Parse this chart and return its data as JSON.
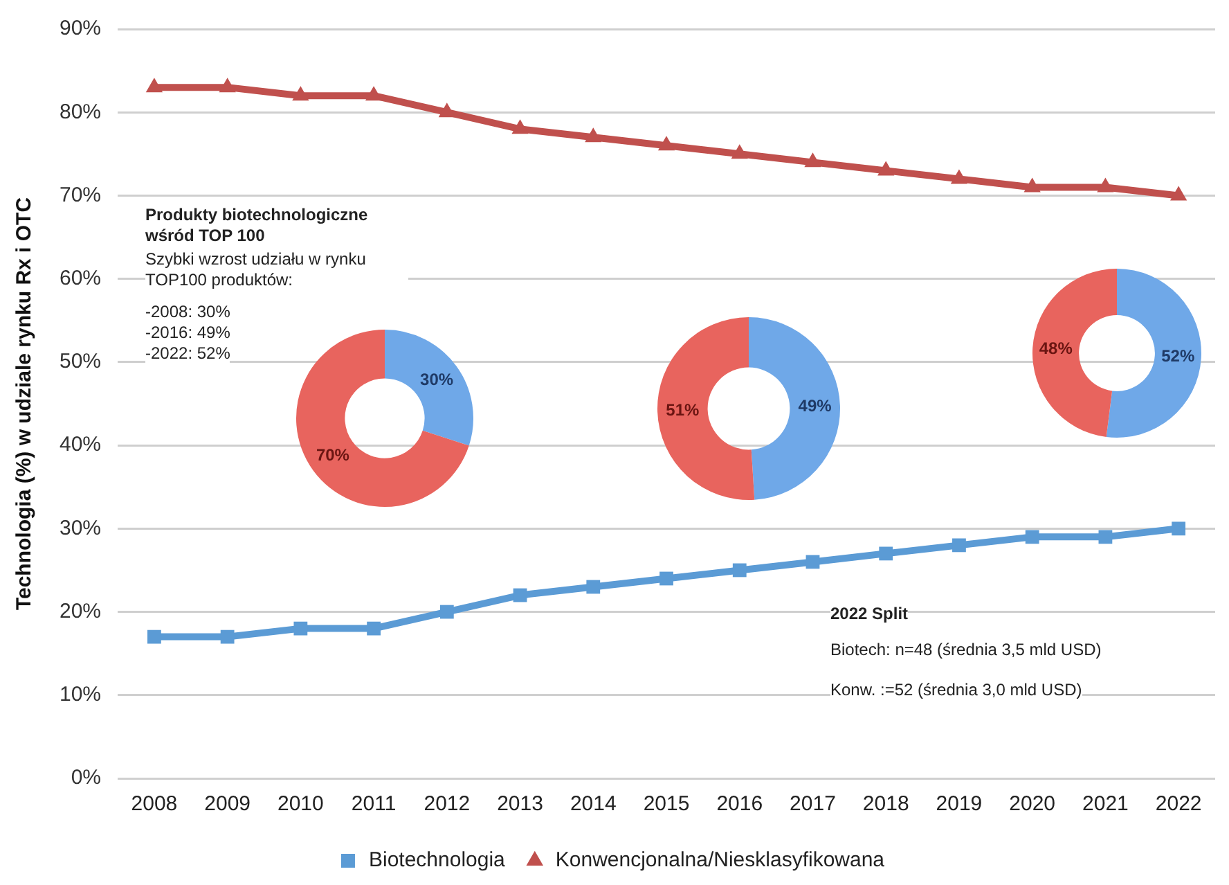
{
  "chart_data": [
    {
      "type": "line",
      "ylabel": "Technologia (%) w udziale rynku Rx i OTC",
      "categories": [
        "2008",
        "2009",
        "2010",
        "2011",
        "2012",
        "2013",
        "2014",
        "2015",
        "2016",
        "2017",
        "2018",
        "2019",
        "2020",
        "2021",
        "2022"
      ],
      "series": [
        {
          "name": "Biotechnologia",
          "color": "#5b9bd5",
          "marker": "square",
          "values": [
            17,
            17,
            18,
            18,
            20,
            22,
            23,
            24,
            25,
            26,
            27,
            28,
            29,
            29,
            30
          ]
        },
        {
          "name": "Konwencjonalna/Niesklasyfikowana",
          "color": "#c0504d",
          "marker": "triangle",
          "values": [
            83,
            83,
            82,
            82,
            80,
            78,
            77,
            76,
            75,
            74,
            73,
            72,
            71,
            71,
            70
          ]
        }
      ],
      "ylim": [
        0,
        90
      ],
      "yticks": [
        {
          "value": 0,
          "label": "0%"
        },
        {
          "value": 10,
          "label": "10%"
        },
        {
          "value": 20,
          "label": "20%"
        },
        {
          "value": 30,
          "label": "30%"
        },
        {
          "value": 40,
          "label": "40%"
        },
        {
          "value": 50,
          "label": "50%"
        },
        {
          "value": 60,
          "label": "60%"
        },
        {
          "value": 70,
          "label": "70%"
        },
        {
          "value": 80,
          "label": "80%"
        },
        {
          "value": 90,
          "label": "90%"
        }
      ],
      "grid": "y",
      "legend": "bottom",
      "line_style": "solid",
      "annotations": [
        "Produkty biotechnologiczne wśród TOP 100",
        "Szybki wzrost udziału w rynku TOP100 produktów:",
        "-2008: 30%",
        "-2016: 49%",
        "-2022: 52%",
        "2022 Split",
        "Biotech: n=48 (średnia 3,5 mld USD)",
        "Konw. :=52 (średnia 3,0 mld USD)"
      ]
    },
    {
      "type": "donut",
      "categories": [
        null,
        null
      ],
      "values": [
        30,
        70
      ],
      "value_labels": [
        "30%",
        "70%"
      ],
      "colors": [
        "#6fa8e8",
        "#e8645e"
      ]
    },
    {
      "type": "donut",
      "categories": [
        null,
        null
      ],
      "values": [
        49,
        51
      ],
      "value_labels": [
        "49%",
        "51%"
      ],
      "colors": [
        "#6fa8e8",
        "#e8645e"
      ]
    },
    {
      "type": "donut",
      "categories": [
        null,
        null
      ],
      "values": [
        52,
        48
      ],
      "value_labels": [
        "52%",
        "48%"
      ],
      "colors": [
        "#6fa8e8",
        "#e8645e"
      ]
    }
  ]
}
